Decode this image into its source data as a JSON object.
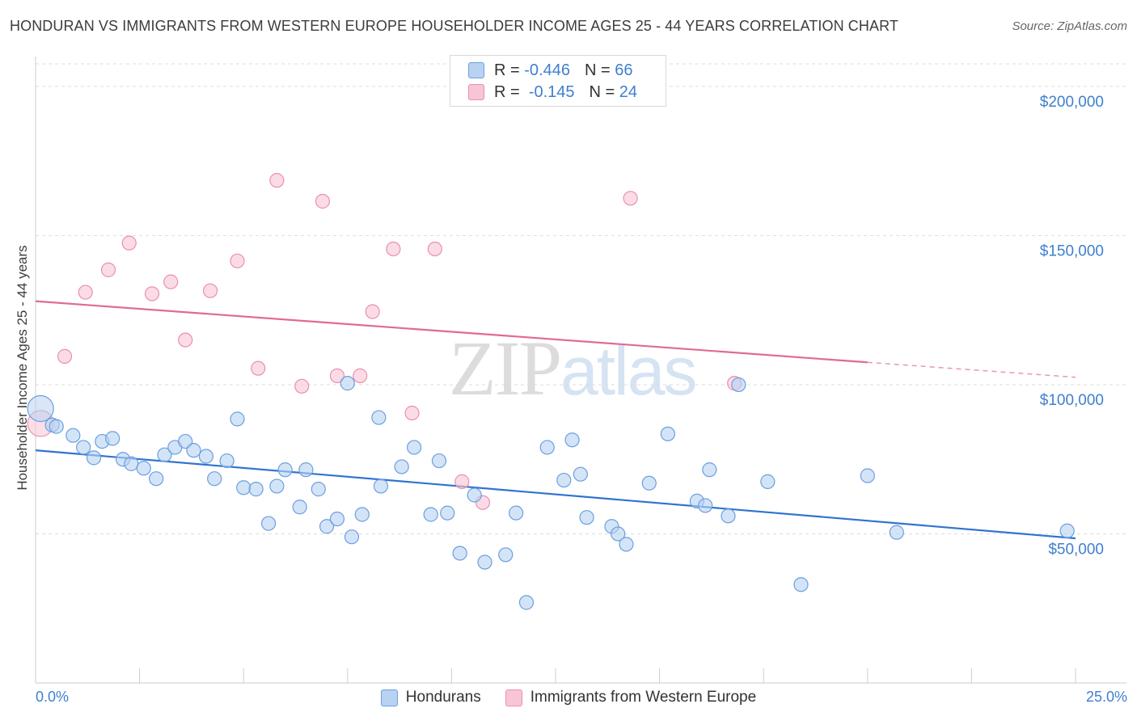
{
  "title": "HONDURAN VS IMMIGRANTS FROM WESTERN EUROPE HOUSEHOLDER INCOME AGES 25 - 44 YEARS CORRELATION CHART",
  "source": "Source: ZipAtlas.com",
  "watermark": {
    "part1": "ZIP",
    "part2": "atlas"
  },
  "legend_stats": {
    "row1": {
      "r_label": "R =",
      "r_value": "-0.446",
      "n_label": "N =",
      "n_value": "66"
    },
    "row2": {
      "r_label": "R =",
      "r_value": "-0.145",
      "n_label": "N =",
      "n_value": "24"
    }
  },
  "colors": {
    "blue_fill": "#b8d2f2",
    "blue_stroke": "#6a9fe0",
    "blue_line": "#2f74d0",
    "pink_fill": "#f8c5d6",
    "pink_stroke": "#ea8fae",
    "pink_line": "#e06a93",
    "grid": "#dddddd",
    "tick_text": "#3f7fd0"
  },
  "chart_data": {
    "type": "scatter",
    "title": "HONDURAN VS IMMIGRANTS FROM WESTERN EUROPE HOUSEHOLDER INCOME AGES 25 - 44 YEARS CORRELATION CHART",
    "xlabel": "",
    "ylabel": "Householder Income Ages 25 - 44 years",
    "xlim": [
      0,
      25
    ],
    "ylim": [
      0,
      210000
    ],
    "x_tick_labels": {
      "min": "0.0%",
      "max": "25.0%"
    },
    "y_ticks": [
      {
        "value": 50000,
        "label": "$50,000"
      },
      {
        "value": 100000,
        "label": "$100,000"
      },
      {
        "value": 150000,
        "label": "$150,000"
      },
      {
        "value": 200000,
        "label": "$200,000"
      }
    ],
    "legend": [
      "Hondurans",
      "Immigrants from Western Europe"
    ],
    "series": [
      {
        "name": "Hondurans",
        "color": "blue",
        "trend": {
          "x0": 0,
          "y0": 78000,
          "x1": 25,
          "y1": 48500
        },
        "points": [
          {
            "x": 0.12,
            "y": 92000,
            "big": true
          },
          {
            "x": 0.4,
            "y": 86500
          },
          {
            "x": 0.5,
            "y": 86000
          },
          {
            "x": 0.9,
            "y": 83000
          },
          {
            "x": 1.15,
            "y": 79000
          },
          {
            "x": 1.4,
            "y": 75500
          },
          {
            "x": 1.6,
            "y": 81000
          },
          {
            "x": 1.85,
            "y": 82000
          },
          {
            "x": 2.1,
            "y": 75000
          },
          {
            "x": 2.3,
            "y": 73500
          },
          {
            "x": 2.6,
            "y": 72000
          },
          {
            "x": 2.9,
            "y": 68500
          },
          {
            "x": 3.1,
            "y": 76500
          },
          {
            "x": 3.35,
            "y": 79000
          },
          {
            "x": 3.6,
            "y": 81000
          },
          {
            "x": 3.8,
            "y": 78000
          },
          {
            "x": 4.1,
            "y": 76000
          },
          {
            "x": 4.3,
            "y": 68500
          },
          {
            "x": 4.6,
            "y": 74500
          },
          {
            "x": 4.85,
            "y": 88500
          },
          {
            "x": 5.0,
            "y": 65500
          },
          {
            "x": 5.3,
            "y": 65000
          },
          {
            "x": 5.6,
            "y": 53500
          },
          {
            "x": 5.8,
            "y": 66000
          },
          {
            "x": 6.0,
            "y": 71500
          },
          {
            "x": 6.35,
            "y": 59000
          },
          {
            "x": 6.5,
            "y": 71500
          },
          {
            "x": 6.8,
            "y": 65000
          },
          {
            "x": 7.0,
            "y": 52500
          },
          {
            "x": 7.25,
            "y": 55000
          },
          {
            "x": 7.5,
            "y": 100500
          },
          {
            "x": 7.6,
            "y": 49000
          },
          {
            "x": 7.85,
            "y": 56500
          },
          {
            "x": 8.25,
            "y": 89000
          },
          {
            "x": 8.3,
            "y": 66000
          },
          {
            "x": 8.8,
            "y": 72500
          },
          {
            "x": 9.1,
            "y": 79000
          },
          {
            "x": 9.5,
            "y": 56500
          },
          {
            "x": 9.7,
            "y": 74500
          },
          {
            "x": 9.9,
            "y": 57000
          },
          {
            "x": 10.2,
            "y": 43500
          },
          {
            "x": 10.55,
            "y": 63000
          },
          {
            "x": 10.8,
            "y": 40500
          },
          {
            "x": 11.3,
            "y": 43000
          },
          {
            "x": 11.55,
            "y": 57000
          },
          {
            "x": 11.8,
            "y": 27000
          },
          {
            "x": 12.3,
            "y": 79000
          },
          {
            "x": 12.7,
            "y": 68000
          },
          {
            "x": 12.9,
            "y": 81500
          },
          {
            "x": 13.1,
            "y": 70000
          },
          {
            "x": 13.25,
            "y": 55500
          },
          {
            "x": 13.85,
            "y": 52500
          },
          {
            "x": 14.0,
            "y": 50000
          },
          {
            "x": 14.2,
            "y": 46500
          },
          {
            "x": 14.75,
            "y": 67000
          },
          {
            "x": 15.2,
            "y": 83500
          },
          {
            "x": 15.9,
            "y": 61000
          },
          {
            "x": 16.1,
            "y": 59500
          },
          {
            "x": 16.2,
            "y": 71500
          },
          {
            "x": 16.65,
            "y": 56000
          },
          {
            "x": 16.9,
            "y": 100000
          },
          {
            "x": 17.6,
            "y": 67500
          },
          {
            "x": 18.4,
            "y": 33000
          },
          {
            "x": 20.0,
            "y": 69500
          },
          {
            "x": 20.7,
            "y": 50500
          },
          {
            "x": 24.8,
            "y": 51000
          }
        ]
      },
      {
        "name": "Immigrants from Western Europe",
        "color": "pink",
        "trend": {
          "x0": 0,
          "y0": 128000,
          "x1": 20,
          "y1": 107500,
          "dash_x1": 25,
          "dash_y1": 102500
        },
        "points": [
          {
            "x": 0.12,
            "y": 87000,
            "big": true
          },
          {
            "x": 0.7,
            "y": 109500
          },
          {
            "x": 1.2,
            "y": 131000
          },
          {
            "x": 1.75,
            "y": 138500
          },
          {
            "x": 2.25,
            "y": 147500
          },
          {
            "x": 2.8,
            "y": 130500
          },
          {
            "x": 3.25,
            "y": 134500
          },
          {
            "x": 3.6,
            "y": 115000
          },
          {
            "x": 4.2,
            "y": 131500
          },
          {
            "x": 4.85,
            "y": 141500
          },
          {
            "x": 5.35,
            "y": 105500
          },
          {
            "x": 5.8,
            "y": 168500
          },
          {
            "x": 6.4,
            "y": 99500
          },
          {
            "x": 6.9,
            "y": 161500
          },
          {
            "x": 7.25,
            "y": 103000
          },
          {
            "x": 7.8,
            "y": 103000
          },
          {
            "x": 8.1,
            "y": 124500
          },
          {
            "x": 8.6,
            "y": 145500
          },
          {
            "x": 9.05,
            "y": 90500
          },
          {
            "x": 9.6,
            "y": 145500
          },
          {
            "x": 10.25,
            "y": 67500
          },
          {
            "x": 10.75,
            "y": 60500
          },
          {
            "x": 14.3,
            "y": 162500
          },
          {
            "x": 16.8,
            "y": 100500
          }
        ]
      }
    ]
  }
}
